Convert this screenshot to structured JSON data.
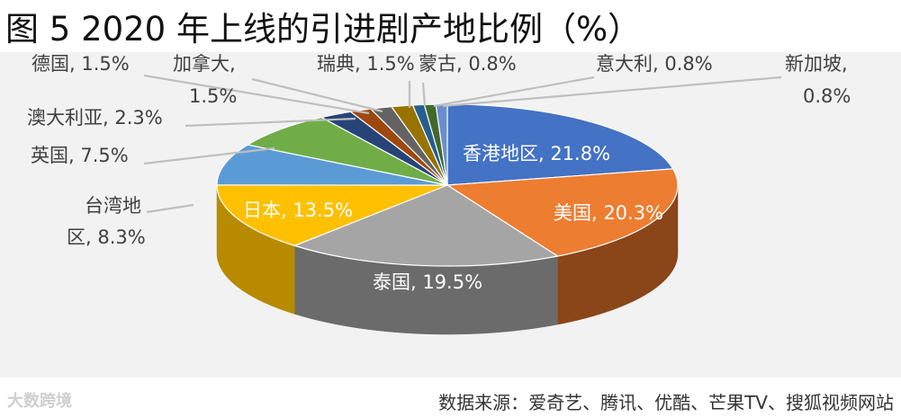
{
  "title": "图 5 2020 年上线的引进剧产地比例（%）",
  "source": "数据来源：爱奇艺、腾讯、优酷、芒果TV、搜狐视频网站",
  "watermark": "大数跨境",
  "chart_data": {
    "type": "pie",
    "style": "3d",
    "title": "图 5 2020 年上线的引进剧产地比例（%）",
    "unit": "%",
    "slices": [
      {
        "label": "香港地区",
        "value": 21.8,
        "text": "香港地区, 21.8%",
        "color": "#4472c4",
        "side": "#2b4a82"
      },
      {
        "label": "美国",
        "value": 20.3,
        "text": "美国, 20.3%",
        "color": "#ed7d31",
        "side": "#8a4518"
      },
      {
        "label": "泰国",
        "value": 19.5,
        "text": "泰国, 19.5%",
        "color": "#a5a5a5",
        "side": "#6b6b6b"
      },
      {
        "label": "日本",
        "value": 13.5,
        "text": "日本, 13.5%",
        "color": "#ffc000",
        "side": "#b78a00"
      },
      {
        "label": "台湾地区",
        "value": 8.3,
        "text": "台湾地区, 8.3%",
        "color": "#5b9bd5",
        "side": "#3a6b98"
      },
      {
        "label": "英国",
        "value": 7.5,
        "text": "英国, 7.5%",
        "color": "#70ad47",
        "side": "#4a7a2e"
      },
      {
        "label": "澳大利亚",
        "value": 2.3,
        "text": "澳大利亚, 2.3%",
        "color": "#264478",
        "side": "#172a4a"
      },
      {
        "label": "德国",
        "value": 1.5,
        "text": "德国, 1.5%",
        "color": "#9e480e",
        "side": "#652e08"
      },
      {
        "label": "加拿大",
        "value": 1.5,
        "text": "加拿大, 1.5%",
        "color": "#636363",
        "side": "#3c3c3c"
      },
      {
        "label": "瑞典",
        "value": 1.5,
        "text": "瑞典, 1.5%",
        "color": "#997300",
        "side": "#5f4800"
      },
      {
        "label": "蒙古",
        "value": 0.8,
        "text": "蒙古, 0.8%",
        "color": "#255e91",
        "side": "#173b5c"
      },
      {
        "label": "意大利",
        "value": 0.8,
        "text": "意大利, 0.8%",
        "color": "#43682b",
        "side": "#2a421b"
      },
      {
        "label": "新加坡",
        "value": 0.8,
        "text": "新加坡, 0.8%",
        "color": "#698ed0",
        "side": "#43609a"
      }
    ]
  }
}
